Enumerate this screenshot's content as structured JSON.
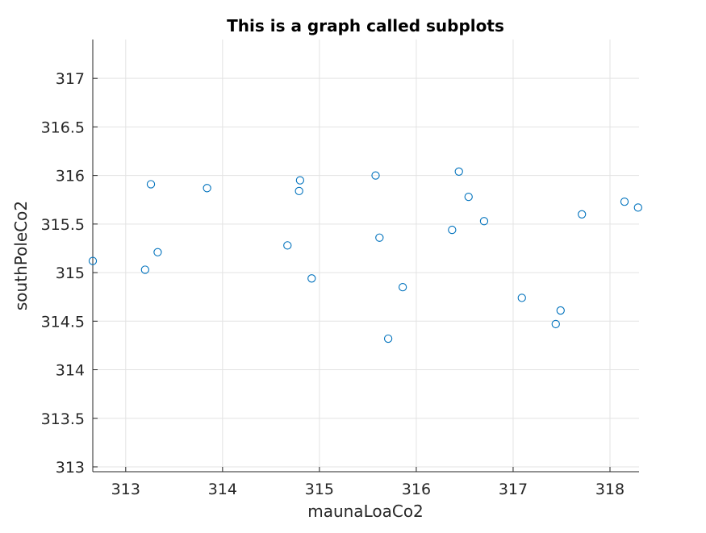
{
  "chart_data": {
    "type": "scatter",
    "title": "This is a graph called subplots",
    "xlabel": "maunaLoaCo2",
    "ylabel": "southPoleCo2",
    "xlim": [
      312.66,
      318.3
    ],
    "ylim": [
      312.95,
      317.4
    ],
    "xticks": [
      313,
      314,
      315,
      316,
      317,
      318
    ],
    "yticks": [
      313,
      313.5,
      314,
      314.5,
      315,
      315.5,
      316,
      316.5,
      317
    ],
    "grid": true,
    "legend": "none",
    "colors": {
      "marker": "#0072bd"
    },
    "series": [
      {
        "x": [
          312.66,
          313.2,
          313.26,
          313.33,
          313.84,
          314.67,
          314.79,
          314.8,
          314.92,
          315.58,
          315.62,
          315.71,
          315.86,
          316.37,
          316.44,
          316.54,
          316.7,
          317.09,
          317.44,
          317.49,
          317.71,
          318.15,
          318.29
        ],
        "y": [
          315.12,
          315.03,
          315.91,
          315.21,
          315.87,
          315.28,
          315.84,
          315.95,
          314.94,
          316.0,
          315.36,
          314.32,
          314.85,
          315.44,
          316.04,
          315.78,
          315.53,
          314.74,
          314.47,
          314.61,
          315.6,
          315.73,
          315.67
        ]
      }
    ]
  }
}
